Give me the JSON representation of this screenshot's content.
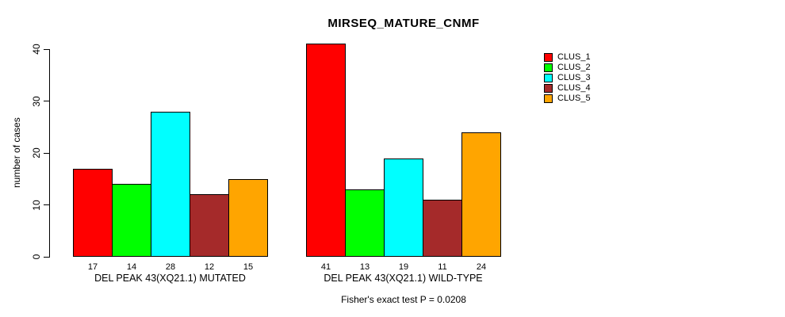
{
  "title": "MIRSEQ_MATURE_CNMF",
  "chart_data": {
    "type": "bar",
    "title": "MIRSEQ_MATURE_CNMF",
    "xlabel": "",
    "ylabel": "number of cases",
    "ylim": [
      0,
      40
    ],
    "yticks": [
      0,
      10,
      20,
      30,
      40
    ],
    "grid": false,
    "legend_position": "right",
    "series": [
      {
        "name": "CLUS_1",
        "color": "#ff0000"
      },
      {
        "name": "CLUS_2",
        "color": "#00ff00"
      },
      {
        "name": "CLUS_3",
        "color": "#00ffff"
      },
      {
        "name": "CLUS_4",
        "color": "#a52a2a"
      },
      {
        "name": "CLUS_5",
        "color": "#ffa500"
      }
    ],
    "groups": [
      {
        "label": "DEL PEAK 43(XQ21.1) MUTATED",
        "values": [
          17,
          14,
          28,
          12,
          15
        ]
      },
      {
        "label": "DEL PEAK 43(XQ21.1) WILD-TYPE",
        "values": [
          41,
          13,
          19,
          11,
          24
        ]
      }
    ],
    "bar_value_labels_shown": true,
    "annotation": "Fisher's exact test P = 0.0208"
  }
}
